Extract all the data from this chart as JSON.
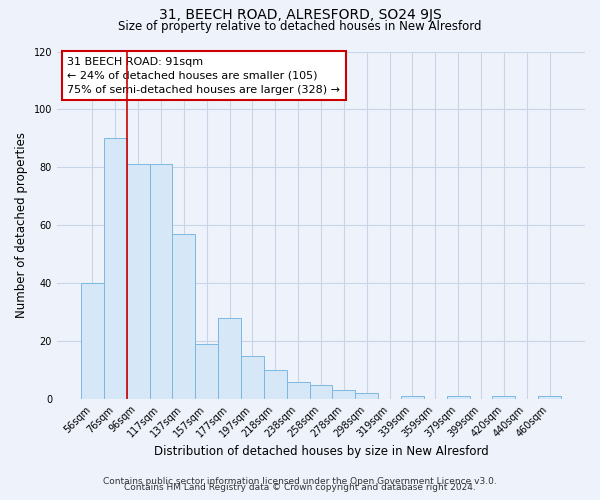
{
  "title": "31, BEECH ROAD, ALRESFORD, SO24 9JS",
  "subtitle": "Size of property relative to detached houses in New Alresford",
  "xlabel": "Distribution of detached houses by size in New Alresford",
  "ylabel": "Number of detached properties",
  "footer_lines": [
    "Contains HM Land Registry data © Crown copyright and database right 2024.",
    "Contains public sector information licensed under the Open Government Licence v3.0."
  ],
  "bar_labels": [
    "56sqm",
    "76sqm",
    "96sqm",
    "117sqm",
    "137sqm",
    "157sqm",
    "177sqm",
    "197sqm",
    "218sqm",
    "238sqm",
    "258sqm",
    "278sqm",
    "298sqm",
    "319sqm",
    "339sqm",
    "359sqm",
    "379sqm",
    "399sqm",
    "420sqm",
    "440sqm",
    "460sqm"
  ],
  "bar_values": [
    40,
    90,
    81,
    81,
    57,
    19,
    28,
    15,
    10,
    6,
    5,
    3,
    2,
    0,
    1,
    0,
    1,
    0,
    1,
    0,
    1
  ],
  "bar_color": "#d6e8f7",
  "bar_edge_color": "#7ab8e0",
  "vline_position": 1.5,
  "vline_color": "#cc0000",
  "annotation_title": "31 BEECH ROAD: 91sqm",
  "annotation_line1": "← 24% of detached houses are smaller (105)",
  "annotation_line2": "75% of semi-detached houses are larger (328) →",
  "annotation_box_color": "#cc0000",
  "ylim": [
    0,
    120
  ],
  "yticks": [
    0,
    20,
    40,
    60,
    80,
    100,
    120
  ],
  "background_color": "#eef2fb",
  "grid_color": "#c8d4e8",
  "title_fontsize": 10,
  "subtitle_fontsize": 8.5,
  "xlabel_fontsize": 8.5,
  "ylabel_fontsize": 8.5,
  "tick_fontsize": 7,
  "annotation_fontsize": 8,
  "footer_fontsize": 6.5
}
